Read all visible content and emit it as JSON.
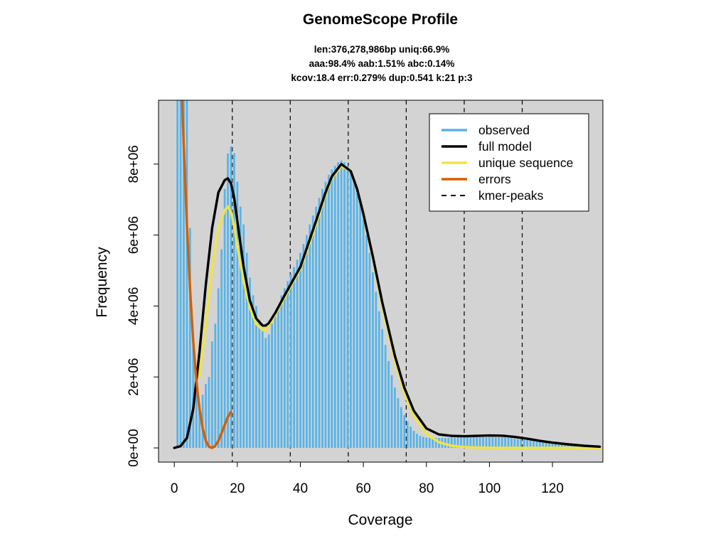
{
  "chart_data": {
    "type": "bar",
    "title": "GenomeScope Profile",
    "subtitle_lines": [
      "len:376,278,986bp uniq:66.9%",
      "aaa:98.4% aab:1.51% abc:0.14%",
      "kcov:18.4 err:0.279%  dup:0.541  k:21 p:3"
    ],
    "xlabel": "Coverage",
    "ylabel": "Frequency",
    "xlim": [
      -5,
      136
    ],
    "ylim": [
      -400000,
      9800000
    ],
    "x_ticks": [
      0,
      20,
      40,
      60,
      80,
      100,
      120
    ],
    "x_tick_labels": [
      "0",
      "20",
      "40",
      "60",
      "80",
      "100",
      "120"
    ],
    "y_ticks": [
      0,
      2000000,
      4000000,
      6000000,
      8000000
    ],
    "y_tick_labels": [
      "0e+00",
      "2e+06",
      "4e+06",
      "6e+06",
      "8e+06"
    ],
    "kmer_peaks": [
      18.4,
      36.8,
      55.2,
      73.6,
      92.0,
      110.4
    ],
    "legend": {
      "position": "top-right",
      "entries": [
        {
          "label": "observed",
          "color": "#56B4E9",
          "style": "solid"
        },
        {
          "label": "full model",
          "color": "#000000",
          "style": "solid"
        },
        {
          "label": "unique sequence",
          "color": "#F0E442",
          "style": "solid"
        },
        {
          "label": "errors",
          "color": "#D55E00",
          "style": "solid"
        },
        {
          "label": "kmer-peaks",
          "color": "#000000",
          "style": "dashed"
        }
      ]
    },
    "series": [
      {
        "name": "observed",
        "color": "#56B4E9",
        "x": [
          1,
          2,
          3,
          4,
          5,
          6,
          7,
          8,
          9,
          10,
          11,
          12,
          13,
          14,
          15,
          16,
          17,
          18,
          19,
          20,
          21,
          22,
          23,
          24,
          25,
          26,
          27,
          28,
          29,
          30,
          31,
          32,
          33,
          34,
          35,
          36,
          37,
          38,
          39,
          40,
          41,
          42,
          43,
          44,
          45,
          46,
          47,
          48,
          49,
          50,
          51,
          52,
          53,
          54,
          55,
          56,
          57,
          58,
          59,
          60,
          61,
          62,
          63,
          64,
          65,
          66,
          67,
          68,
          69,
          70,
          71,
          72,
          73,
          74,
          75,
          76,
          77,
          78,
          79,
          80,
          81,
          82,
          83,
          84,
          85,
          86,
          87,
          88,
          89,
          90,
          91,
          92,
          93,
          94,
          95,
          96,
          97,
          98,
          99,
          100,
          101,
          102,
          103,
          104,
          105,
          106,
          107,
          108,
          109,
          110,
          111,
          112,
          113,
          114,
          115,
          116,
          117,
          118,
          119,
          120,
          121,
          122,
          123,
          124,
          125,
          126,
          127,
          128,
          129,
          130,
          131,
          132,
          133,
          134,
          135
        ],
        "values": [
          9800000,
          9800000,
          9800000,
          9800000,
          6200000,
          3100000,
          1500000,
          1100000,
          1500000,
          1800000,
          2000000,
          3000000,
          3500000,
          4500000,
          5600000,
          7300000,
          8300000,
          8500000,
          8300000,
          7500000,
          6800000,
          6300000,
          5500000,
          4800000,
          4300000,
          4000000,
          3600000,
          3300000,
          3100000,
          3200000,
          3500000,
          3700000,
          3900000,
          4300000,
          4500000,
          4700000,
          4900000,
          5100000,
          5300000,
          5500000,
          5750000,
          6000000,
          6300000,
          6550000,
          6800000,
          7050000,
          7300000,
          7500000,
          7700000,
          7850000,
          7950000,
          8050000,
          8100000,
          8050000,
          7950000,
          7800000,
          7550000,
          7250000,
          6900000,
          6450000,
          6000000,
          5500000,
          4950000,
          4400000,
          3850000,
          3350000,
          2900000,
          2450000,
          2050000,
          1700000,
          1400000,
          1150000,
          930000,
          750000,
          600000,
          480000,
          400000,
          340000,
          310000,
          290000,
          280000,
          280000,
          280000,
          280000,
          280000,
          280000,
          280000,
          290000,
          290000,
          300000,
          300000,
          300000,
          300000,
          300000,
          300000,
          300000,
          300000,
          300000,
          300000,
          300000,
          300000,
          300000,
          300000,
          300000,
          290000,
          280000,
          270000,
          260000,
          250000,
          240000,
          230000,
          220000,
          210000,
          200000,
          190000,
          180000,
          170000,
          160000,
          150000,
          140000,
          130000,
          120000,
          110000,
          100000,
          95000,
          90000,
          85000,
          80000,
          75000,
          70000,
          65000,
          60000,
          55000,
          50000,
          45000
        ]
      },
      {
        "name": "full model",
        "color": "#000000",
        "x": [
          0,
          2,
          4,
          6,
          8,
          10,
          12,
          14,
          16,
          17,
          18,
          19,
          20,
          22,
          24,
          26,
          28,
          29,
          30,
          32,
          35,
          40,
          45,
          48,
          50,
          53,
          56,
          58,
          60,
          63,
          66,
          70,
          73,
          76,
          80,
          84,
          88,
          92,
          96,
          100,
          104,
          108,
          112,
          116,
          120,
          125,
          130,
          135
        ],
        "values": [
          0,
          50000,
          280000,
          1100000,
          2700000,
          4600000,
          6200000,
          7200000,
          7550000,
          7600000,
          7450000,
          7050000,
          6400000,
          5100000,
          4150000,
          3650000,
          3450000,
          3450000,
          3520000,
          3800000,
          4300000,
          5100000,
          6400000,
          7200000,
          7650000,
          8000000,
          7800000,
          7300000,
          6600000,
          5400000,
          4100000,
          2600000,
          1700000,
          1050000,
          550000,
          380000,
          340000,
          330000,
          340000,
          350000,
          345000,
          310000,
          260000,
          200000,
          150000,
          100000,
          60000,
          35000
        ]
      },
      {
        "name": "unique sequence",
        "color": "#F0E442",
        "x": [
          8,
          10,
          12,
          14,
          16,
          17,
          18,
          19,
          20,
          22,
          24,
          26,
          28,
          29,
          30,
          32,
          35,
          40,
          45,
          48,
          50,
          53,
          56,
          58,
          60,
          63,
          66,
          70,
          73,
          76,
          80,
          84,
          88,
          92,
          96,
          100,
          105,
          110,
          120,
          130,
          135
        ],
        "values": [
          2000000,
          3500000,
          5100000,
          6200000,
          6700000,
          6800000,
          6650000,
          6250000,
          5700000,
          4700000,
          3950000,
          3500000,
          3320000,
          3330000,
          3450000,
          3750000,
          4250000,
          5050000,
          6300000,
          7150000,
          7600000,
          7950000,
          7800000,
          7300000,
          6600000,
          5350000,
          4000000,
          2450000,
          1550000,
          900000,
          400000,
          160000,
          60000,
          25000,
          10000,
          5000,
          3000,
          2000,
          1000,
          500,
          300
        ]
      },
      {
        "name": "errors",
        "color": "#D55E00",
        "x": [
          2.5,
          3,
          4,
          5,
          6,
          7,
          8,
          9,
          10,
          11,
          12,
          13,
          14,
          15,
          16,
          17,
          18
        ],
        "values": [
          9800000,
          8500000,
          6300000,
          4500000,
          3000000,
          1900000,
          1100000,
          550000,
          200000,
          30000,
          0,
          60000,
          200000,
          420000,
          650000,
          870000,
          1020000
        ]
      }
    ]
  }
}
